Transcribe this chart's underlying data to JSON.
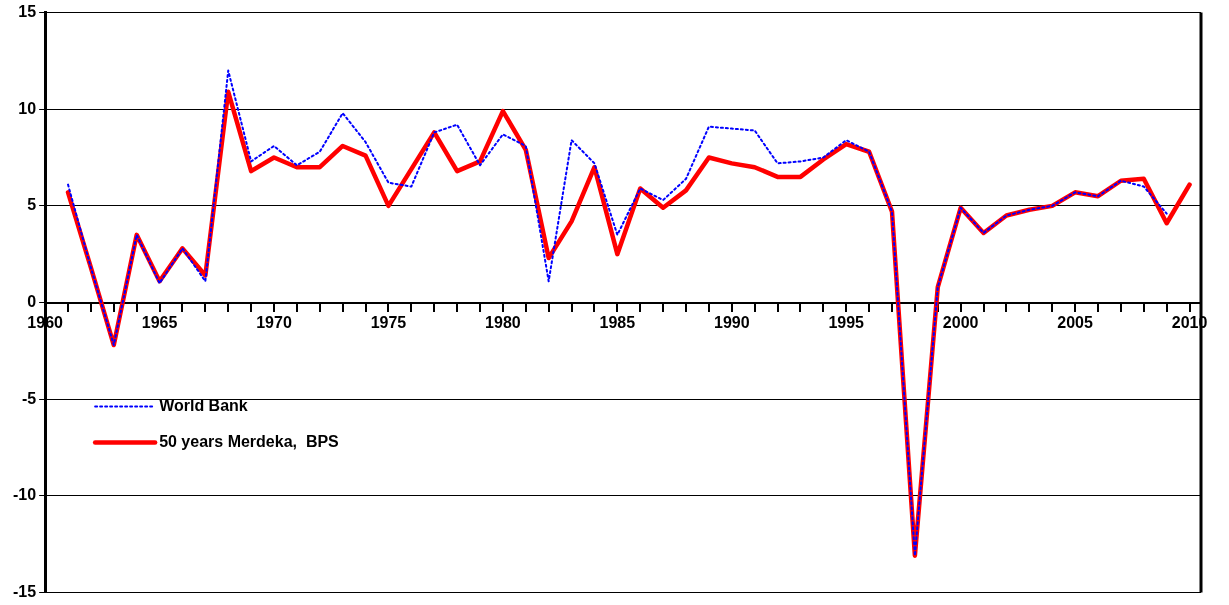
{
  "chart_data": {
    "type": "line",
    "x": [
      1961,
      1962,
      1963,
      1964,
      1965,
      1966,
      1967,
      1968,
      1969,
      1970,
      1971,
      1972,
      1973,
      1974,
      1975,
      1976,
      1977,
      1978,
      1979,
      1980,
      1981,
      1982,
      1983,
      1984,
      1985,
      1986,
      1987,
      1988,
      1989,
      1990,
      1991,
      1992,
      1993,
      1994,
      1995,
      1996,
      1997,
      1998,
      1999,
      2000,
      2001,
      2002,
      2003,
      2004,
      2005,
      2006,
      2007,
      2008,
      2009,
      2010
    ],
    "series": [
      {
        "name": "World Bank",
        "color": "#0000ff",
        "line_style": "dotted",
        "values": [
          6.1,
          1.8,
          -2.2,
          3.5,
          1.0,
          2.8,
          1.1,
          12.0,
          7.3,
          8.1,
          7.1,
          7.8,
          9.8,
          8.3,
          6.2,
          6.0,
          8.8,
          9.2,
          7.1,
          8.7,
          8.1,
          1.1,
          8.4,
          7.2,
          3.5,
          5.9,
          5.3,
          6.4,
          9.1,
          9.0,
          8.9,
          7.2,
          7.3,
          7.5,
          8.4,
          7.8,
          4.7,
          -13.1,
          0.8,
          4.9,
          3.6,
          4.5,
          4.8,
          5.0,
          5.7,
          5.5,
          6.3,
          6.0,
          4.6,
          null
        ]
      },
      {
        "name": "50 years Merdeka,  BPS",
        "color": "#ff0000",
        "line_style": "solid",
        "values": [
          5.7,
          1.8,
          -2.2,
          3.5,
          1.1,
          2.8,
          1.4,
          10.9,
          6.8,
          7.5,
          7.0,
          7.0,
          8.1,
          7.6,
          5.0,
          6.9,
          8.8,
          6.8,
          7.3,
          9.9,
          7.9,
          2.3,
          4.2,
          7.0,
          2.5,
          5.9,
          4.9,
          5.8,
          7.5,
          7.2,
          7.0,
          6.5,
          6.5,
          7.4,
          8.2,
          7.8,
          4.7,
          -13.1,
          0.8,
          4.9,
          3.6,
          4.5,
          4.8,
          5.0,
          5.7,
          5.5,
          6.3,
          6.4,
          4.1,
          6.1
        ]
      }
    ],
    "xlim": [
      1960,
      2010.5
    ],
    "xticks": [
      1960,
      {
        "value": 1961,
        "label": null
      },
      {
        "value": 1962,
        "label": null
      },
      {
        "value": 1963,
        "label": null
      },
      {
        "value": 1964,
        "label": null
      },
      1965,
      {
        "value": 1966,
        "label": null
      },
      {
        "value": 1967,
        "label": null
      },
      {
        "value": 1968,
        "label": null
      },
      {
        "value": 1969,
        "label": null
      },
      1970,
      {
        "value": 1971,
        "label": null
      },
      {
        "value": 1972,
        "label": null
      },
      {
        "value": 1973,
        "label": null
      },
      {
        "value": 1974,
        "label": null
      },
      1975,
      {
        "value": 1976,
        "label": null
      },
      {
        "value": 1977,
        "label": null
      },
      {
        "value": 1978,
        "label": null
      },
      {
        "value": 1979,
        "label": null
      },
      1980,
      {
        "value": 1981,
        "label": null
      },
      {
        "value": 1982,
        "label": null
      },
      {
        "value": 1983,
        "label": null
      },
      {
        "value": 1984,
        "label": null
      },
      1985,
      {
        "value": 1986,
        "label": null
      },
      {
        "value": 1987,
        "label": null
      },
      {
        "value": 1988,
        "label": null
      },
      {
        "value": 1989,
        "label": null
      },
      1990,
      {
        "value": 1991,
        "label": null
      },
      {
        "value": 1992,
        "label": null
      },
      {
        "value": 1993,
        "label": null
      },
      {
        "value": 1994,
        "label": null
      },
      1995,
      {
        "value": 1996,
        "label": null
      },
      {
        "value": 1997,
        "label": null
      },
      {
        "value": 1998,
        "label": null
      },
      {
        "value": 1999,
        "label": null
      },
      2000,
      {
        "value": 2001,
        "label": null
      },
      {
        "value": 2002,
        "label": null
      },
      {
        "value": 2003,
        "label": null
      },
      {
        "value": 2004,
        "label": null
      },
      2005,
      {
        "value": 2006,
        "label": null
      },
      {
        "value": 2007,
        "label": null
      },
      {
        "value": 2008,
        "label": null
      },
      {
        "value": 2009,
        "label": null
      },
      2010
    ],
    "ylim": [
      -15,
      15
    ],
    "yticks": [
      -15,
      -10,
      -5,
      0,
      5,
      10,
      15
    ],
    "grid": "y",
    "legend": "bottom left",
    "marker": "none"
  }
}
